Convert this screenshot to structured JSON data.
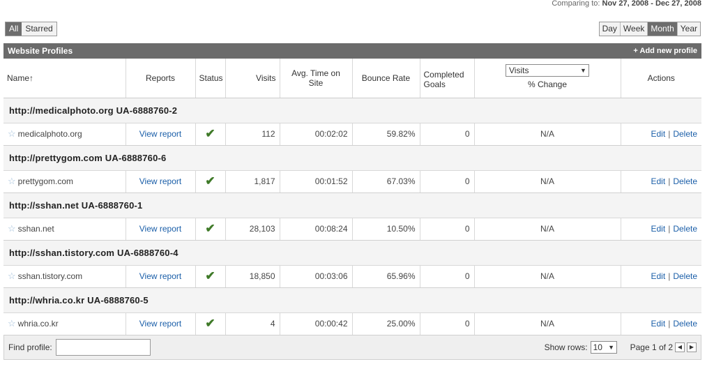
{
  "comparing": {
    "prefix": "Comparing to:",
    "range": "Nov 27, 2008 - Dec 27, 2008"
  },
  "filter_tabs": [
    {
      "label": "All",
      "active": true
    },
    {
      "label": "Starred",
      "active": false
    }
  ],
  "date_ranges": [
    {
      "label": "Day",
      "active": false
    },
    {
      "label": "Week",
      "active": false
    },
    {
      "label": "Month",
      "active": true
    },
    {
      "label": "Year",
      "active": false
    }
  ],
  "panel": {
    "title": "Website Profiles",
    "add_label": "+ Add new profile"
  },
  "columns": {
    "name": "Name",
    "reports": "Reports",
    "status": "Status",
    "visits": "Visits",
    "avg_time": "Avg. Time on Site",
    "bounce": "Bounce Rate",
    "goals": "Completed Goals",
    "metric_select": "Visits",
    "pct_change": "% Change",
    "actions": "Actions"
  },
  "groups": [
    {
      "header": "http://medicalphoto.org  UA-6888760-2",
      "name": "medicalphoto.org",
      "report": "View report",
      "visits": "112",
      "avg_time": "00:02:02",
      "bounce": "59.82%",
      "goals": "0",
      "change": "N/A",
      "edit": "Edit",
      "delete": "Delete"
    },
    {
      "header": "http://prettygom.com  UA-6888760-6",
      "name": "prettygom.com",
      "report": "View report",
      "visits": "1,817",
      "avg_time": "00:01:52",
      "bounce": "67.03%",
      "goals": "0",
      "change": "N/A",
      "edit": "Edit",
      "delete": "Delete"
    },
    {
      "header": "http://sshan.net  UA-6888760-1",
      "name": "sshan.net",
      "report": "View report",
      "visits": "28,103",
      "avg_time": "00:08:24",
      "bounce": "10.50%",
      "goals": "0",
      "change": "N/A",
      "edit": "Edit",
      "delete": "Delete"
    },
    {
      "header": "http://sshan.tistory.com  UA-6888760-4",
      "name": "sshan.tistory.com",
      "report": "View report",
      "visits": "18,850",
      "avg_time": "00:03:06",
      "bounce": "65.96%",
      "goals": "0",
      "change": "N/A",
      "edit": "Edit",
      "delete": "Delete"
    },
    {
      "header": "http://whria.co.kr  UA-6888760-5",
      "name": "whria.co.kr",
      "report": "View report",
      "visits": "4",
      "avg_time": "00:00:42",
      "bounce": "25.00%",
      "goals": "0",
      "change": "N/A",
      "edit": "Edit",
      "delete": "Delete"
    }
  ],
  "footer": {
    "find_label": "Find profile:",
    "find_value": "",
    "show_rows_label": "Show rows:",
    "rows_value": "10",
    "page_info": "Page 1 of 2"
  },
  "colors": {
    "bar": "#6b6b6b",
    "link": "#1a5ea8",
    "check": "#3f7a28",
    "group_bg": "#f4f4f4"
  }
}
